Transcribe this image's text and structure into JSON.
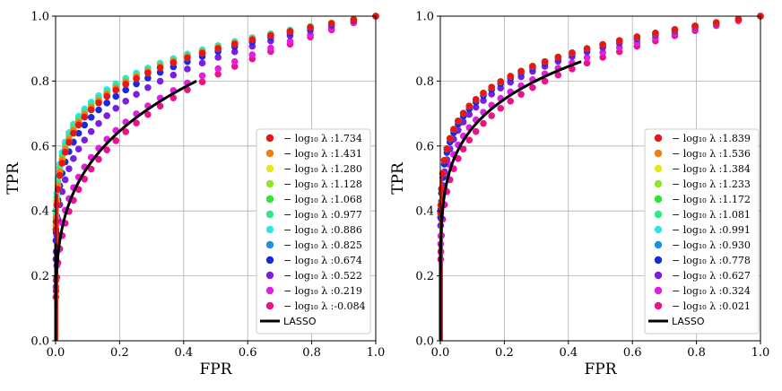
{
  "chart_data": [
    {
      "type": "scatter",
      "title": "",
      "xlabel": "FPR",
      "ylabel": "TPR",
      "xlim": [
        0,
        1
      ],
      "ylim": [
        0,
        1
      ],
      "xticks": [
        "0.0",
        "0.2",
        "0.4",
        "0.6",
        "0.8",
        "1.0"
      ],
      "yticks": [
        "0.0",
        "0.2",
        "0.4",
        "0.6",
        "0.8",
        "1.0"
      ],
      "grid": true,
      "legend_position": "lower-right",
      "legend_prefix": "− log₁₀ λ :",
      "series": [
        {
          "name": "1.734",
          "color": "#e8161b",
          "k": 0.155
        },
        {
          "name": "1.431",
          "color": "#f07d12",
          "k": 0.15
        },
        {
          "name": "1.280",
          "color": "#e6e619",
          "k": 0.15
        },
        {
          "name": "1.128",
          "color": "#8ee52a",
          "k": 0.15
        },
        {
          "name": "1.068",
          "color": "#2ee52f",
          "k": 0.155
        },
        {
          "name": "0.977",
          "color": "#2fe88a",
          "k": 0.145
        },
        {
          "name": "0.886",
          "color": "#2de6e6",
          "k": 0.14
        },
        {
          "name": "0.825",
          "color": "#1f8ee6",
          "k": 0.15
        },
        {
          "name": "0.674",
          "color": "#1a28e0",
          "k": 0.17
        },
        {
          "name": "0.522",
          "color": "#7a1ee0",
          "k": 0.2
        },
        {
          "name": "0.219",
          "color": "#e01fe0",
          "k": 0.26
        },
        {
          "name": "-0.084",
          "color": "#e8148a",
          "k": 0.29
        }
      ],
      "lasso": {
        "name": "LASSO",
        "color": "#000000",
        "x_end": 0.44,
        "y_end": 0.8
      }
    },
    {
      "type": "scatter",
      "title": "",
      "xlabel": "FPR",
      "ylabel": "TPR",
      "xlim": [
        0,
        1
      ],
      "ylim": [
        0,
        1
      ],
      "xticks": [
        "0.0",
        "0.2",
        "0.4",
        "0.6",
        "0.8",
        "1.0"
      ],
      "yticks": [
        "0.0",
        "0.2",
        "0.4",
        "0.6",
        "0.8",
        "1.0"
      ],
      "grid": true,
      "legend_position": "lower-right",
      "legend_prefix": "− log₁₀ λ :",
      "series": [
        {
          "name": "1.839",
          "color": "#e8161b",
          "k": 0.135
        },
        {
          "name": "1.536",
          "color": "#f07d12",
          "k": 0.135
        },
        {
          "name": "1.384",
          "color": "#e6e619",
          "k": 0.135
        },
        {
          "name": "1.233",
          "color": "#8ee52a",
          "k": 0.135
        },
        {
          "name": "1.172",
          "color": "#2ee52f",
          "k": 0.135
        },
        {
          "name": "1.081",
          "color": "#2fe88a",
          "k": 0.135
        },
        {
          "name": "0.991",
          "color": "#2de6e6",
          "k": 0.135
        },
        {
          "name": "0.930",
          "color": "#1f8ee6",
          "k": 0.135
        },
        {
          "name": "0.778",
          "color": "#1a28e0",
          "k": 0.14
        },
        {
          "name": "0.627",
          "color": "#7a1ee0",
          "k": 0.15
        },
        {
          "name": "0.324",
          "color": "#e01fe0",
          "k": 0.175
        },
        {
          "name": "0.021",
          "color": "#e8148a",
          "k": 0.2
        }
      ],
      "lasso": {
        "name": "LASSO",
        "color": "#000000",
        "x_end": 0.44,
        "y_end": 0.86
      }
    }
  ]
}
